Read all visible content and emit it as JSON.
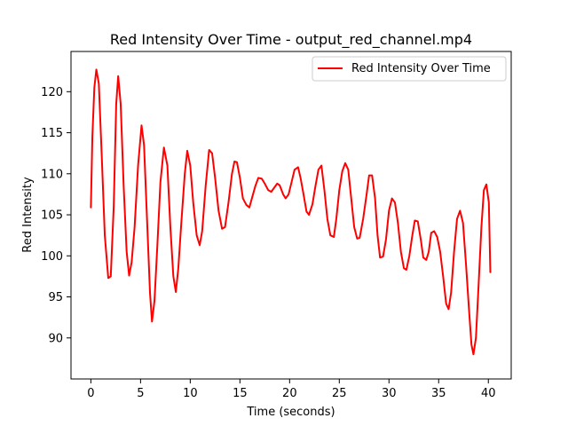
{
  "chart_data": {
    "type": "line",
    "title": "Red Intensity Over Time - output_red_channel.mp4",
    "xlabel": "Time (seconds)",
    "ylabel": "Red Intensity",
    "xlim": [
      -2.0,
      42.3
    ],
    "ylim": [
      85.0,
      124.9
    ],
    "x_ticks": [
      0,
      5,
      10,
      15,
      20,
      25,
      30,
      35,
      40
    ],
    "y_ticks": [
      90,
      95,
      100,
      105,
      110,
      115,
      120
    ],
    "grid": false,
    "legend": {
      "placement": "top-right",
      "entries": [
        "Red Intensity Over Time"
      ]
    },
    "series": [
      {
        "name": "Red Intensity Over Time",
        "color": "#ff0000",
        "points": [
          [
            0.0,
            105.9
          ],
          [
            0.15,
            114.5
          ],
          [
            0.35,
            120.5
          ],
          [
            0.55,
            122.7
          ],
          [
            0.8,
            121.0
          ],
          [
            1.1,
            112.0
          ],
          [
            1.4,
            102.5
          ],
          [
            1.75,
            97.3
          ],
          [
            2.0,
            97.5
          ],
          [
            2.3,
            106.0
          ],
          [
            2.55,
            118.5
          ],
          [
            2.75,
            121.9
          ],
          [
            3.0,
            118.5
          ],
          [
            3.3,
            108.5
          ],
          [
            3.6,
            100.5
          ],
          [
            3.85,
            97.6
          ],
          [
            4.1,
            99.2
          ],
          [
            4.4,
            103.5
          ],
          [
            4.75,
            111.0
          ],
          [
            5.1,
            115.9
          ],
          [
            5.35,
            113.5
          ],
          [
            5.65,
            104.5
          ],
          [
            5.95,
            95.5
          ],
          [
            6.15,
            92.0
          ],
          [
            6.4,
            94.5
          ],
          [
            6.7,
            101.5
          ],
          [
            7.0,
            109.0
          ],
          [
            7.35,
            113.2
          ],
          [
            7.7,
            111.0
          ],
          [
            8.0,
            103.5
          ],
          [
            8.3,
            97.5
          ],
          [
            8.55,
            95.6
          ],
          [
            8.8,
            98.5
          ],
          [
            9.1,
            104.0
          ],
          [
            9.45,
            110.0
          ],
          [
            9.7,
            112.8
          ],
          [
            10.0,
            111.0
          ],
          [
            10.3,
            106.5
          ],
          [
            10.65,
            102.5
          ],
          [
            10.95,
            101.3
          ],
          [
            11.2,
            103.0
          ],
          [
            11.55,
            108.5
          ],
          [
            11.9,
            112.9
          ],
          [
            12.2,
            112.5
          ],
          [
            12.5,
            109.5
          ],
          [
            12.85,
            105.5
          ],
          [
            13.2,
            103.3
          ],
          [
            13.5,
            103.5
          ],
          [
            13.85,
            106.5
          ],
          [
            14.2,
            110.0
          ],
          [
            14.45,
            111.5
          ],
          [
            14.7,
            111.4
          ],
          [
            15.0,
            109.5
          ],
          [
            15.3,
            107.0
          ],
          [
            15.65,
            106.2
          ],
          [
            15.95,
            105.9
          ],
          [
            16.25,
            107.2
          ],
          [
            16.55,
            108.5
          ],
          [
            16.85,
            109.5
          ],
          [
            17.2,
            109.4
          ],
          [
            17.5,
            108.8
          ],
          [
            17.85,
            108.0
          ],
          [
            18.15,
            107.8
          ],
          [
            18.45,
            108.3
          ],
          [
            18.75,
            108.8
          ],
          [
            19.0,
            108.6
          ],
          [
            19.35,
            107.5
          ],
          [
            19.6,
            107.0
          ],
          [
            19.9,
            107.5
          ],
          [
            20.2,
            109.0
          ],
          [
            20.5,
            110.5
          ],
          [
            20.85,
            110.8
          ],
          [
            21.1,
            109.5
          ],
          [
            21.4,
            107.5
          ],
          [
            21.7,
            105.4
          ],
          [
            21.95,
            105.0
          ],
          [
            22.3,
            106.3
          ],
          [
            22.6,
            108.5
          ],
          [
            22.9,
            110.5
          ],
          [
            23.2,
            111.0
          ],
          [
            23.5,
            108.0
          ],
          [
            23.8,
            104.5
          ],
          [
            24.1,
            102.5
          ],
          [
            24.45,
            102.3
          ],
          [
            24.7,
            104.5
          ],
          [
            25.0,
            108.0
          ],
          [
            25.3,
            110.3
          ],
          [
            25.6,
            111.3
          ],
          [
            25.9,
            110.5
          ],
          [
            26.2,
            107.0
          ],
          [
            26.5,
            103.5
          ],
          [
            26.8,
            102.1
          ],
          [
            27.05,
            102.2
          ],
          [
            27.4,
            104.5
          ],
          [
            27.75,
            107.5
          ],
          [
            28.0,
            109.8
          ],
          [
            28.3,
            109.8
          ],
          [
            28.6,
            107.0
          ],
          [
            28.85,
            102.5
          ],
          [
            29.1,
            99.8
          ],
          [
            29.4,
            99.9
          ],
          [
            29.7,
            102.0
          ],
          [
            30.0,
            105.5
          ],
          [
            30.3,
            107.0
          ],
          [
            30.6,
            106.5
          ],
          [
            30.9,
            104.0
          ],
          [
            31.2,
            100.5
          ],
          [
            31.5,
            98.5
          ],
          [
            31.75,
            98.3
          ],
          [
            32.05,
            100.0
          ],
          [
            32.35,
            102.5
          ],
          [
            32.6,
            104.3
          ],
          [
            32.9,
            104.2
          ],
          [
            33.2,
            102.0
          ],
          [
            33.45,
            99.8
          ],
          [
            33.75,
            99.5
          ],
          [
            34.0,
            100.5
          ],
          [
            34.25,
            102.8
          ],
          [
            34.55,
            103.0
          ],
          [
            34.85,
            102.3
          ],
          [
            35.15,
            100.5
          ],
          [
            35.45,
            97.5
          ],
          [
            35.75,
            94.2
          ],
          [
            36.0,
            93.5
          ],
          [
            36.25,
            95.5
          ],
          [
            36.55,
            100.5
          ],
          [
            36.85,
            104.5
          ],
          [
            37.15,
            105.5
          ],
          [
            37.45,
            104.0
          ],
          [
            37.75,
            99.0
          ],
          [
            38.05,
            93.5
          ],
          [
            38.3,
            89.2
          ],
          [
            38.5,
            88.0
          ],
          [
            38.75,
            90.0
          ],
          [
            39.0,
            96.0
          ],
          [
            39.3,
            103.5
          ],
          [
            39.55,
            108.0
          ],
          [
            39.8,
            108.7
          ],
          [
            40.05,
            106.5
          ],
          [
            40.2,
            98.0
          ]
        ]
      }
    ]
  }
}
